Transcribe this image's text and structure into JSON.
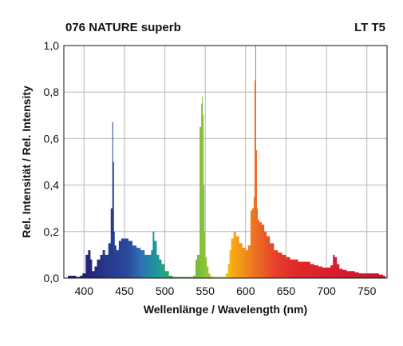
{
  "header": {
    "title": "076 NATURE superb",
    "model": "LT T5"
  },
  "chart_data": {
    "type": "area",
    "title": "076 NATURE superb",
    "subtitle": "LT T5",
    "xlabel": "Wellenlänge / Wavelength (nm)",
    "ylabel": "Rel. Intensität / Rel. Intensity",
    "xlim": [
      375,
      775
    ],
    "ylim": [
      0,
      1.0
    ],
    "xticks": [
      400,
      450,
      500,
      550,
      600,
      650,
      700,
      750
    ],
    "yticks": [
      0,
      0.2,
      0.4,
      0.6,
      0.8,
      1.0
    ],
    "ytick_labels": [
      "0,0",
      "0,2",
      "0,4",
      "0,6",
      "0,8",
      "1,0"
    ],
    "grid": true,
    "fill": "spectral-color-gradient",
    "series": [
      {
        "x": [
          380,
          385,
          390,
          395,
          398,
          402,
          405,
          408,
          410,
          413,
          416,
          420,
          423,
          426,
          430,
          433,
          435,
          436,
          437,
          438,
          440,
          443,
          446,
          450,
          455,
          460,
          465,
          470,
          475,
          480,
          483,
          485,
          487,
          490,
          493,
          496,
          500,
          505,
          510,
          515,
          520,
          525,
          530,
          535,
          538,
          540,
          543,
          545,
          546,
          547,
          548,
          549,
          550,
          552,
          554,
          556,
          558,
          560,
          565,
          570,
          575,
          578,
          580,
          582,
          585,
          588,
          592,
          596,
          600,
          603,
          606,
          608,
          610,
          611,
          612,
          613,
          614,
          615,
          617,
          620,
          623,
          626,
          630,
          635,
          640,
          645,
          650,
          655,
          660,
          665,
          670,
          675,
          680,
          685,
          690,
          695,
          700,
          705,
          708,
          710,
          713,
          716,
          720,
          725,
          730,
          735,
          740,
          745,
          750,
          755,
          760,
          765,
          770,
          773
        ],
        "y": [
          0.01,
          0.01,
          0.005,
          0.01,
          0.02,
          0.1,
          0.12,
          0.08,
          0.03,
          0.05,
          0.08,
          0.1,
          0.12,
          0.1,
          0.15,
          0.3,
          0.67,
          0.5,
          0.2,
          0.14,
          0.12,
          0.16,
          0.17,
          0.17,
          0.16,
          0.14,
          0.13,
          0.12,
          0.1,
          0.1,
          0.12,
          0.2,
          0.16,
          0.1,
          0.08,
          0.06,
          0.03,
          0.01,
          0.005,
          0.005,
          0.005,
          0.005,
          0.005,
          0.01,
          0.08,
          0.1,
          0.65,
          0.75,
          0.78,
          0.7,
          0.4,
          0.2,
          0.09,
          0.05,
          0.02,
          0.01,
          0.005,
          0.005,
          0.005,
          0.005,
          0.02,
          0.06,
          0.12,
          0.17,
          0.2,
          0.18,
          0.15,
          0.13,
          0.12,
          0.14,
          0.29,
          0.3,
          0.35,
          0.85,
          1.0,
          0.55,
          0.3,
          0.25,
          0.24,
          0.23,
          0.2,
          0.18,
          0.15,
          0.12,
          0.11,
          0.1,
          0.09,
          0.08,
          0.08,
          0.07,
          0.07,
          0.07,
          0.06,
          0.055,
          0.05,
          0.045,
          0.045,
          0.055,
          0.1,
          0.09,
          0.06,
          0.04,
          0.035,
          0.03,
          0.03,
          0.025,
          0.02,
          0.02,
          0.02,
          0.02,
          0.02,
          0.015,
          0.01,
          0.0
        ]
      }
    ]
  }
}
